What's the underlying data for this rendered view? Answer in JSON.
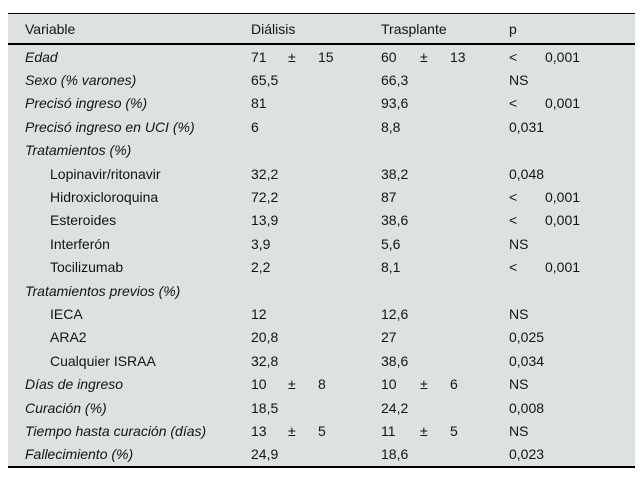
{
  "colors": {
    "table_background": "#dee1e1",
    "rule": "#000000",
    "text": "#141414"
  },
  "table": {
    "headers": [
      "Variable",
      "Diálisis",
      "Trasplante",
      "p"
    ],
    "rows": [
      {
        "label": "Edad",
        "italic": true,
        "indent": false,
        "dialisis": [
          "71",
          "±",
          "15"
        ],
        "trasplante": [
          "60",
          "±",
          "13"
        ],
        "p": [
          "<",
          "0,001"
        ]
      },
      {
        "label": "Sexo (% varones)",
        "italic": true,
        "indent": false,
        "dialisis": [
          "65,5"
        ],
        "trasplante": [
          "66,3"
        ],
        "p": [
          "NS"
        ]
      },
      {
        "label": "Precisó ingreso (%)",
        "italic": true,
        "indent": false,
        "dialisis": [
          "81"
        ],
        "trasplante": [
          "93,6"
        ],
        "p": [
          "<",
          "0,001"
        ]
      },
      {
        "label": "Precisó ingreso en UCI (%)",
        "italic": true,
        "indent": false,
        "dialisis": [
          "6"
        ],
        "trasplante": [
          "8,8"
        ],
        "p": [
          "0,031"
        ]
      },
      {
        "label": "Tratamientos (%)",
        "italic": true,
        "indent": false,
        "dialisis": [],
        "trasplante": [],
        "p": []
      },
      {
        "label": "Lopinavir/ritonavir",
        "italic": false,
        "indent": true,
        "dialisis": [
          "32,2"
        ],
        "trasplante": [
          "38,2"
        ],
        "p": [
          "0,048"
        ]
      },
      {
        "label": "Hidroxicloroquina",
        "italic": false,
        "indent": true,
        "dialisis": [
          "72,2"
        ],
        "trasplante": [
          "87"
        ],
        "p": [
          "<",
          "0,001"
        ]
      },
      {
        "label": "Esteroides",
        "italic": false,
        "indent": true,
        "dialisis": [
          "13,9"
        ],
        "trasplante": [
          "38,6"
        ],
        "p": [
          "<",
          "0,001"
        ]
      },
      {
        "label": "Interferón",
        "italic": false,
        "indent": true,
        "dialisis": [
          "3,9"
        ],
        "trasplante": [
          "5,6"
        ],
        "p": [
          "NS"
        ]
      },
      {
        "label": "Tocilizumab",
        "italic": false,
        "indent": true,
        "dialisis": [
          "2,2"
        ],
        "trasplante": [
          "8,1"
        ],
        "p": [
          "<",
          "0,001"
        ]
      },
      {
        "label": "Tratamientos previos (%)",
        "italic": true,
        "indent": false,
        "dialisis": [],
        "trasplante": [],
        "p": []
      },
      {
        "label": "IECA",
        "italic": false,
        "indent": true,
        "dialisis": [
          "12"
        ],
        "trasplante": [
          "12,6"
        ],
        "p": [
          "NS"
        ]
      },
      {
        "label": "ARA2",
        "italic": false,
        "indent": true,
        "dialisis": [
          "20,8"
        ],
        "trasplante": [
          "27"
        ],
        "p": [
          "0,025"
        ]
      },
      {
        "label": "Cualquier ISRAA",
        "italic": false,
        "indent": true,
        "dialisis": [
          "32,8"
        ],
        "trasplante": [
          "38,6"
        ],
        "p": [
          "0,034"
        ]
      },
      {
        "label": "Días de ingreso",
        "italic": true,
        "indent": false,
        "dialisis": [
          "10",
          "±",
          "8"
        ],
        "trasplante": [
          "10",
          "±",
          "6"
        ],
        "p": [
          "NS"
        ]
      },
      {
        "label": "Curación (%)",
        "italic": true,
        "indent": false,
        "dialisis": [
          "18,5"
        ],
        "trasplante": [
          "24,2"
        ],
        "p": [
          "0,008"
        ]
      },
      {
        "label": "Tiempo hasta curación (días)",
        "italic": true,
        "indent": false,
        "dialisis": [
          "13",
          "±",
          "5"
        ],
        "trasplante": [
          "11",
          "±",
          "5"
        ],
        "p": [
          "NS"
        ]
      },
      {
        "label": "Fallecimiento (%)",
        "italic": true,
        "indent": false,
        "dialisis": [
          "24,9"
        ],
        "trasplante": [
          "18,6"
        ],
        "p": [
          "0,023"
        ]
      }
    ]
  }
}
